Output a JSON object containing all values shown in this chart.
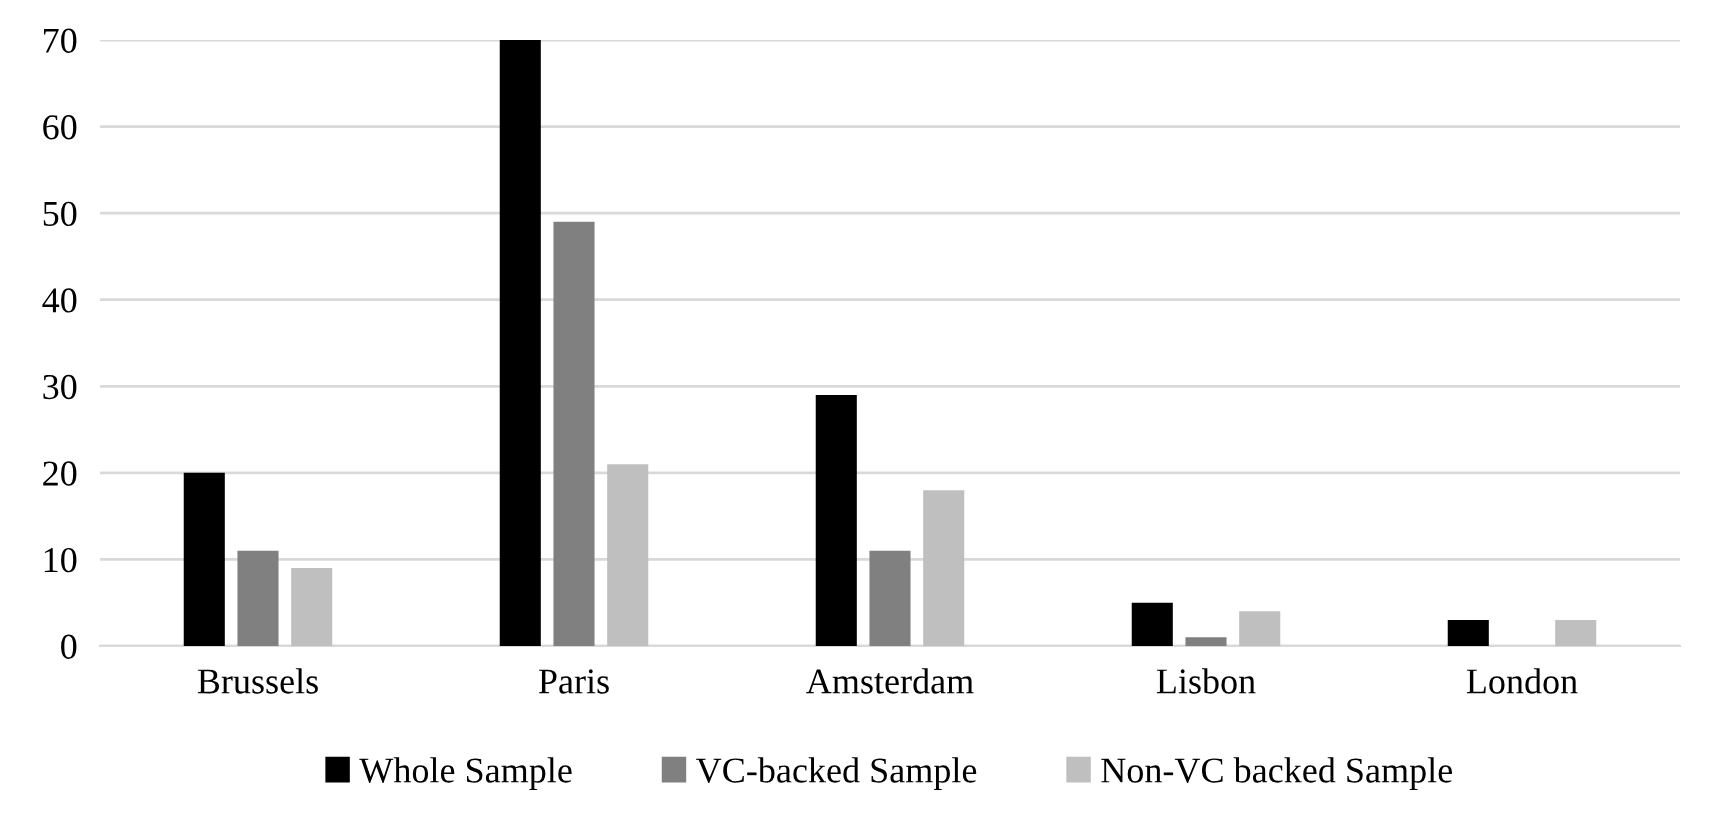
{
  "chart_data": {
    "type": "bar",
    "categories": [
      "Brussels",
      "Paris",
      "Amsterdam",
      "Lisbon",
      "London"
    ],
    "series": [
      {
        "name": "Whole Sample",
        "color": "#000000",
        "values": [
          20,
          70,
          29,
          5,
          3
        ]
      },
      {
        "name": "VC-backed Sample",
        "color": "#808080",
        "values": [
          11,
          49,
          11,
          1,
          0
        ]
      },
      {
        "name": "Non-VC backed Sample",
        "color": "#bfbfbf",
        "values": [
          9,
          21,
          18,
          4,
          3
        ]
      }
    ],
    "ylim": [
      0,
      70
    ],
    "yticks": [
      0,
      10,
      20,
      30,
      40,
      50,
      60,
      70
    ],
    "grid": "y",
    "legend": "bottom"
  }
}
